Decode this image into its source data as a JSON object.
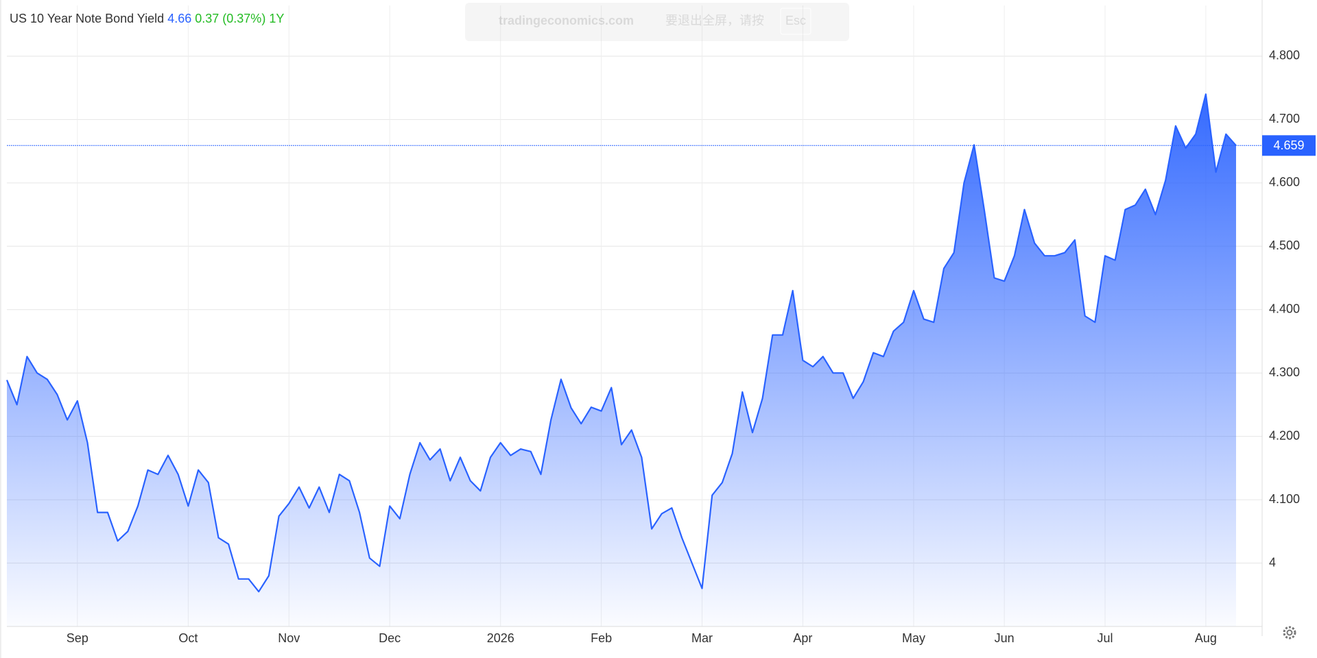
{
  "header": {
    "title": "US 10 Year Note Bond Yield",
    "price": "4.66",
    "change": "0.37 (0.37%)",
    "period": "1Y"
  },
  "toast": {
    "site": "tradingeconomics.com",
    "message": "要退出全屏，请按",
    "key": "Esc"
  },
  "chart_data": {
    "type": "area",
    "color": "#2962ff",
    "grid": true,
    "ylim": [
      3.9,
      4.88
    ],
    "yticks": [
      4,
      {
        "value": 4.1,
        "label": "4.100"
      },
      {
        "value": 4.2,
        "label": "4.200"
      },
      {
        "value": 4.3,
        "label": "4.300"
      },
      {
        "value": 4.4,
        "label": "4.400"
      },
      {
        "value": 4.5,
        "label": "4.500"
      },
      {
        "value": 4.6,
        "label": "4.600"
      },
      {
        "value": 4.7,
        "label": "4.700"
      },
      {
        "value": 4.8,
        "label": "4.800"
      }
    ],
    "last_value": 4.659,
    "categories": [
      null,
      null,
      null,
      null,
      null,
      null,
      null,
      "Sep",
      null,
      null,
      null,
      null,
      null,
      null,
      null,
      null,
      null,
      null,
      "Oct",
      null,
      null,
      null,
      null,
      null,
      null,
      null,
      null,
      null,
      "Nov",
      null,
      null,
      null,
      null,
      null,
      null,
      null,
      null,
      null,
      "Dec",
      null,
      null,
      null,
      null,
      null,
      null,
      null,
      null,
      null,
      null,
      "2026",
      null,
      null,
      null,
      null,
      null,
      null,
      null,
      null,
      null,
      "Feb",
      null,
      null,
      null,
      null,
      null,
      null,
      null,
      null,
      null,
      "Mar",
      null,
      null,
      null,
      null,
      null,
      null,
      null,
      null,
      null,
      "Apr",
      null,
      null,
      null,
      null,
      null,
      null,
      null,
      null,
      null,
      null,
      "May",
      null,
      null,
      null,
      null,
      null,
      null,
      null,
      null,
      "Jun",
      null,
      null,
      null,
      null,
      null,
      null,
      null,
      null,
      null,
      "Jul",
      null,
      null,
      null,
      null,
      null,
      null,
      null,
      null,
      null,
      "Aug",
      null,
      null,
      null
    ],
    "series": [
      {
        "name": "US 10 Year Note Bond Yield",
        "color": "#2962ff",
        "values": [
          4.289,
          4.25,
          4.326,
          4.3,
          4.29,
          4.266,
          4.226,
          4.256,
          4.19,
          4.08,
          4.08,
          4.035,
          4.05,
          4.09,
          4.147,
          4.14,
          4.17,
          4.14,
          4.09,
          4.147,
          4.127,
          4.04,
          4.03,
          3.975,
          3.975,
          3.955,
          3.98,
          4.074,
          4.094,
          4.12,
          4.087,
          4.12,
          4.08,
          4.14,
          4.13,
          4.08,
          4.008,
          3.995,
          4.09,
          4.07,
          4.14,
          4.19,
          4.163,
          4.18,
          4.13,
          4.167,
          4.13,
          4.114,
          4.167,
          4.19,
          4.17,
          4.18,
          4.176,
          4.14,
          4.226,
          4.29,
          4.245,
          4.22,
          4.246,
          4.24,
          4.277,
          4.187,
          4.21,
          4.167,
          4.054,
          4.078,
          4.087,
          4.04,
          4.0,
          3.96,
          4.107,
          4.127,
          4.173,
          4.27,
          4.206,
          4.26,
          4.36,
          4.36,
          4.43,
          4.32,
          4.31,
          4.326,
          4.3,
          4.3,
          4.26,
          4.286,
          4.332,
          4.326,
          4.366,
          4.38,
          4.43,
          4.385,
          4.38,
          4.465,
          4.49,
          4.6,
          4.66,
          4.558,
          4.45,
          4.445,
          4.485,
          4.558,
          4.505,
          4.485,
          4.485,
          4.49,
          4.51,
          4.39,
          4.38,
          4.485,
          4.478,
          4.558,
          4.565,
          4.59,
          4.55,
          4.604,
          4.69,
          4.655,
          4.677,
          4.74,
          4.617,
          4.677,
          4.659
        ]
      }
    ]
  }
}
